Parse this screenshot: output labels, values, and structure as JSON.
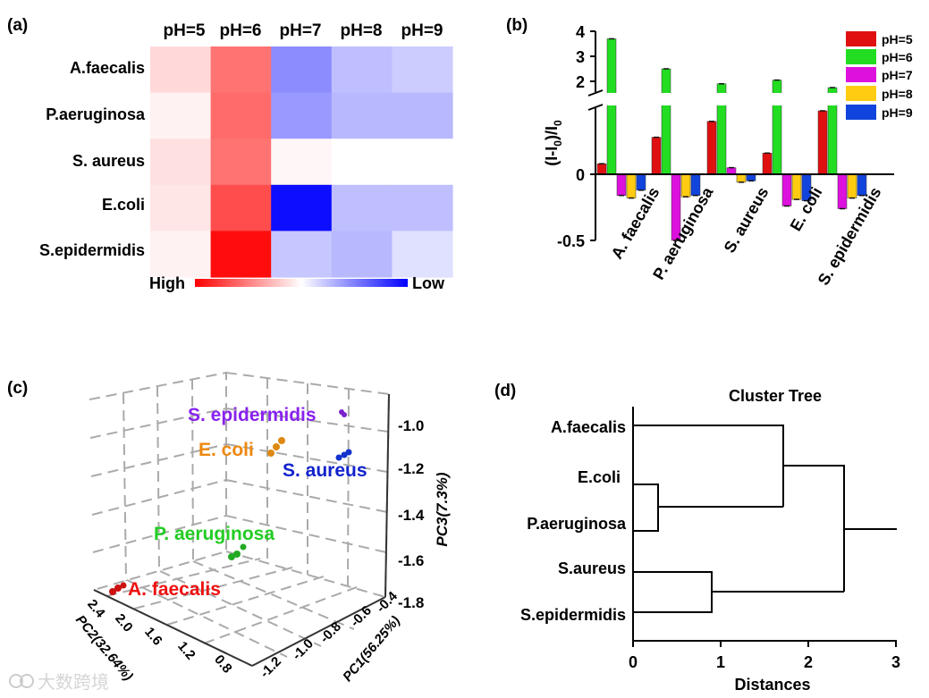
{
  "figure": {
    "panel_a": "(a)",
    "panel_b": "(b)",
    "panel_c": "(c)",
    "panel_d": "(d)",
    "watermark": "大数跨境"
  },
  "chart_data": [
    {
      "id": "a",
      "type": "heatmap",
      "title": "",
      "columns": [
        "pH=5",
        "pH=6",
        "pH=7",
        "pH=8",
        "pH=9"
      ],
      "rows": [
        "A.faecalis",
        "P.aeruginosa",
        "S. aureus",
        "E.coli",
        "S.epidermidis"
      ],
      "values": [
        [
          0.15,
          0.55,
          -0.45,
          -0.25,
          -0.2
        ],
        [
          0.05,
          0.58,
          -0.4,
          -0.28,
          -0.28
        ],
        [
          0.12,
          0.55,
          0.03,
          0.0,
          0.0
        ],
        [
          0.1,
          0.7,
          -0.95,
          -0.25,
          -0.25
        ],
        [
          0.05,
          0.95,
          -0.22,
          -0.28,
          -0.12
        ]
      ],
      "colorbar": {
        "low_label": "Low",
        "high_label": "High",
        "colors": [
          "#ff0000",
          "#ffffff",
          "#0000ff"
        ]
      }
    },
    {
      "id": "b",
      "type": "bar",
      "categories": [
        "A. faecalis",
        "P. aeruginosa",
        "S. aureus",
        "E. coli",
        "S. epidermidis"
      ],
      "series": [
        {
          "name": "pH=5",
          "color": "#e01010",
          "values": [
            0.08,
            0.28,
            0.4,
            0.16,
            0.48
          ]
        },
        {
          "name": "pH=6",
          "color": "#22dd22",
          "values": [
            3.7,
            2.5,
            1.9,
            2.05,
            1.75
          ]
        },
        {
          "name": "pH=7",
          "color": "#dd11dd",
          "values": [
            -0.16,
            -0.5,
            0.05,
            -0.24,
            -0.26
          ]
        },
        {
          "name": "pH=8",
          "color": "#ffcc11",
          "values": [
            -0.18,
            -0.17,
            -0.06,
            -0.19,
            -0.18
          ]
        },
        {
          "name": "pH=9",
          "color": "#1144dd",
          "values": [
            -0.12,
            -0.16,
            -0.05,
            -0.2,
            -0.16
          ]
        }
      ],
      "ylabel": "(I-I0)/I0",
      "ylim": [
        -0.5,
        4
      ],
      "axis_break": [
        0.6,
        1.5
      ],
      "yticks_lower": [
        "0",
        "-0.5"
      ],
      "yticks_upper": [
        "4",
        "3",
        "2"
      ]
    },
    {
      "id": "c",
      "type": "scatter",
      "dimensions": 3,
      "xlabel": "PC1(56.25%)",
      "ylabel": "PC2(32.64%)",
      "zlabel": "PC3(7.3%)",
      "x_ticks": [
        "-1.2",
        "-1.0",
        "-0.8",
        "-0.6",
        "-0.4"
      ],
      "y_ticks": [
        "0.8",
        "1.2",
        "1.6",
        "2.0",
        "2.4"
      ],
      "z_ticks": [
        "-1.0",
        "-1.2",
        "-1.4",
        "-1.6",
        "-1.8"
      ],
      "groups": [
        {
          "name": "S. epidermidis",
          "color": "#8822ee",
          "point_color": "#7a22cc"
        },
        {
          "name": "E. coli",
          "color": "#ee8811",
          "point_color": "#dd8811"
        },
        {
          "name": "S. aureus",
          "color": "#1122cc",
          "point_color": "#1133cc"
        },
        {
          "name": "P. aeruginosa",
          "color": "#22cc22",
          "point_color": "#22aa22"
        },
        {
          "name": "A. faecalis",
          "color": "#ee1111",
          "point_color": "#cc1111"
        }
      ]
    },
    {
      "id": "d",
      "type": "dendrogram",
      "title": "Cluster Tree",
      "xlabel": "Distances",
      "xlim": [
        0,
        3
      ],
      "xticks": [
        "0",
        "1",
        "2",
        "3"
      ],
      "leaves": [
        "A.faecalis",
        "E.coli",
        "P.aeruginosa",
        "S.aureus",
        "S.epidermidis"
      ],
      "merges": [
        {
          "left": "E.coli",
          "right": "P.aeruginosa",
          "distance": 0.28
        },
        {
          "left": "S.aureus",
          "right": "S.epidermidis",
          "distance": 0.9
        },
        {
          "left": "A.faecalis",
          "right": "E.coli+P.aeruginosa",
          "distance": 1.72
        },
        {
          "left": "A.faecalis+E.coli+P.aeruginosa",
          "right": "S.aureus+S.epidermidis",
          "distance": 2.42
        }
      ]
    }
  ]
}
